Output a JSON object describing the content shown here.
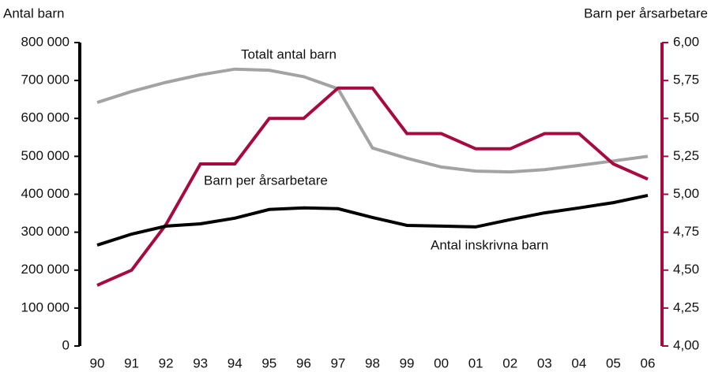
{
  "chart_data": {
    "type": "line",
    "y_label": "Antal barn",
    "y2_label": "Barn per årsarbetare",
    "categories": [
      "90",
      "91",
      "92",
      "93",
      "94",
      "95",
      "96",
      "97",
      "98",
      "99",
      "00",
      "01",
      "02",
      "03",
      "04",
      "05",
      "06"
    ],
    "series": [
      {
        "name": "Totalt antal barn",
        "color": "#a3a3a3",
        "axis": "y",
        "values": [
          642000,
          671000,
          695000,
          715000,
          730000,
          727000,
          710000,
          678000,
          522000,
          495000,
          472000,
          461000,
          459000,
          465000,
          476000,
          488000,
          500000
        ]
      },
      {
        "name": "Barn per årsarbetare",
        "color": "#a8093f",
        "axis": "y2",
        "values": [
          4.4,
          4.5,
          4.8,
          5.2,
          5.2,
          5.5,
          5.5,
          5.7,
          5.7,
          5.4,
          5.4,
          5.3,
          5.3,
          5.4,
          5.4,
          5.2,
          5.1
        ]
      },
      {
        "name": "Antal inskrivna barn",
        "color": "#000000",
        "axis": "y",
        "values": [
          266000,
          295000,
          316000,
          322000,
          337000,
          360000,
          364000,
          362000,
          339000,
          318000,
          316000,
          314000,
          333000,
          351000,
          364000,
          378000,
          397000
        ]
      }
    ],
    "ylim": [
      0,
      800000
    ],
    "yticks": [
      0,
      {
        "value": 100000,
        "label": "100 000"
      },
      {
        "value": 200000,
        "label": "200 000"
      },
      {
        "value": 300000,
        "label": "300 000"
      },
      {
        "value": 400000,
        "label": "400 000"
      },
      {
        "value": 500000,
        "label": "500 000"
      },
      {
        "value": 600000,
        "label": "600 000"
      },
      {
        "value": 700000,
        "label": "700 000"
      },
      {
        "value": 800000,
        "label": "800 000"
      }
    ],
    "y2lim": [
      4,
      6
    ],
    "y2ticks": [
      {
        "value": 4,
        "label": "4,00"
      },
      {
        "value": 4.25,
        "label": "4,25"
      },
      {
        "value": 4.5,
        "label": "4,50"
      },
      {
        "value": 4.75,
        "label": "4,75"
      },
      {
        "value": 5,
        "label": "5,00"
      },
      {
        "value": 5.25,
        "label": "5,25"
      },
      {
        "value": 5.5,
        "label": "5,50"
      },
      {
        "value": 5.75,
        "label": "5,75"
      },
      {
        "value": 6,
        "label": "6,00"
      }
    ],
    "grid": false
  }
}
